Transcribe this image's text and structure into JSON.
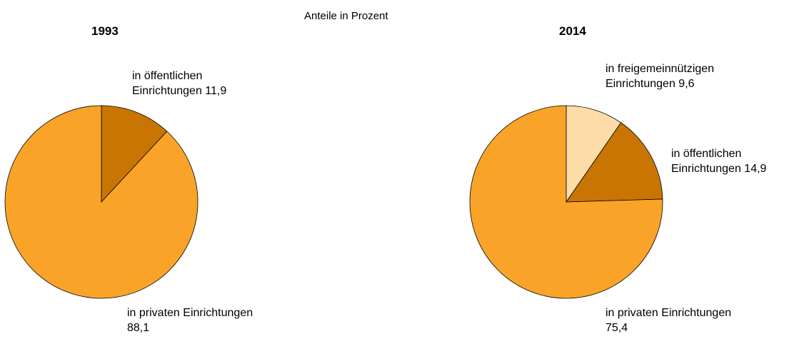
{
  "subtitle": "Anteile in Prozent",
  "chart_data": [
    {
      "type": "pie",
      "title": "1993",
      "categories": [
        "in öffentlichen Einrichtungen",
        "in privaten Einrichtungen"
      ],
      "values": [
        11.9,
        88.1
      ],
      "value_labels": [
        "11,9",
        "88,1"
      ],
      "colors": [
        "#c87503",
        "#f9a428"
      ]
    },
    {
      "type": "pie",
      "title": "2014",
      "categories": [
        "in freigemeinnützigen Einrichtungen",
        "in öffentlichen Einrichtungen",
        "in privaten Einrichtungen"
      ],
      "values": [
        9.6,
        14.9,
        75.4
      ],
      "value_labels": [
        "9,6",
        "14,9",
        "75,4"
      ],
      "colors": [
        "#fddca8",
        "#c87503",
        "#f9a428"
      ]
    }
  ]
}
